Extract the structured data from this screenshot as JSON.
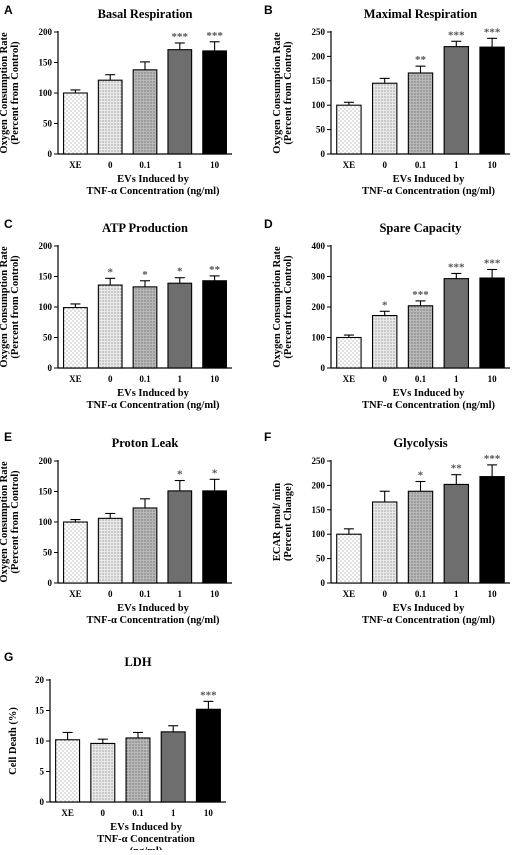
{
  "chart_data": [
    {
      "panel": "A",
      "type": "bar",
      "title": "Basal Respiration",
      "ylabel": [
        "Oxygen  Consumption Rate",
        "(Percent from Control)"
      ],
      "xlabel": [
        "EVs Induced by",
        "TNF-α Concentration (ng/ml)"
      ],
      "categories": [
        "XE",
        "0",
        "0.1",
        "1",
        "10"
      ],
      "values": [
        100,
        121,
        138,
        171,
        169
      ],
      "errors": [
        5,
        9,
        13,
        11,
        15
      ],
      "significance": [
        "",
        "",
        "",
        "***",
        "***"
      ],
      "ylim": [
        0,
        200
      ],
      "yticks": [
        0,
        50,
        100,
        150,
        200
      ]
    },
    {
      "panel": "B",
      "type": "bar",
      "title": "Maximal Respiration",
      "ylabel": [
        "Oxygen  Consumption Rate",
        "(Percent from Control)"
      ],
      "xlabel": [
        "EVs Induced by",
        "TNF-α Concentration (ng/ml)"
      ],
      "categories": [
        "XE",
        "0",
        "0.1",
        "1",
        "10"
      ],
      "values": [
        100,
        145,
        166,
        220,
        219
      ],
      "errors": [
        6,
        10,
        14,
        11,
        18
      ],
      "significance": [
        "",
        "",
        "**",
        "***",
        "***"
      ],
      "ylim": [
        0,
        250
      ],
      "yticks": [
        0,
        50,
        100,
        150,
        200,
        250
      ]
    },
    {
      "panel": "C",
      "type": "bar",
      "title": "ATP Production",
      "ylabel": [
        "Oxygen  Consumption Rate",
        "(Percent from Control)"
      ],
      "xlabel": [
        "EVs Induced by",
        "TNF-α Concentration (ng/ml)"
      ],
      "categories": [
        "XE",
        "0",
        "0.1",
        "1",
        "10"
      ],
      "values": [
        99,
        136,
        133,
        139,
        143
      ],
      "errors": [
        6,
        11,
        10,
        9,
        8
      ],
      "significance": [
        "",
        "*",
        "*",
        "*",
        "**"
      ],
      "ylim": [
        0,
        200
      ],
      "yticks": [
        0,
        50,
        100,
        150,
        200
      ]
    },
    {
      "panel": "D",
      "type": "bar",
      "title": "Spare Capacity",
      "ylabel": [
        "Oxygen  Consumption Rate",
        "(Percent from Control)"
      ],
      "xlabel": [
        "EVs Induced by",
        "TNF-α Concentration (ng/ml)"
      ],
      "categories": [
        "XE",
        "0",
        "0.1",
        "1",
        "10"
      ],
      "values": [
        100,
        172,
        204,
        293,
        295
      ],
      "errors": [
        8,
        14,
        16,
        17,
        28
      ],
      "significance": [
        "",
        "*",
        "***",
        "***",
        "***"
      ],
      "ylim": [
        0,
        400
      ],
      "yticks": [
        0,
        100,
        200,
        300,
        400
      ]
    },
    {
      "panel": "E",
      "type": "bar",
      "title": "Proton Leak",
      "ylabel": [
        "Oxygen  Consumption Rate",
        "(Percent from Control)"
      ],
      "xlabel": [
        "EVs Induced by",
        "TNF-α Concentration (ng/ml)"
      ],
      "categories": [
        "XE",
        "0",
        "0.1",
        "1",
        "10"
      ],
      "values": [
        100,
        106,
        123,
        151,
        151
      ],
      "errors": [
        4,
        8,
        15,
        17,
        19
      ],
      "significance": [
        "",
        "",
        "",
        "*",
        "*"
      ],
      "ylim": [
        0,
        200
      ],
      "yticks": [
        0,
        50,
        100,
        150,
        200
      ]
    },
    {
      "panel": "F",
      "type": "bar",
      "title": "Glycolysis",
      "ylabel": [
        "ECAR pmol/ min",
        "(Percent Change)"
      ],
      "xlabel": [
        "EVs Induced by",
        "TNF-α Concentration (ng/ml)"
      ],
      "categories": [
        "XE",
        "0",
        "0.1",
        "1",
        "10"
      ],
      "values": [
        100,
        166,
        188,
        202,
        218
      ],
      "errors": [
        11,
        22,
        20,
        20,
        24
      ],
      "significance": [
        "",
        "",
        "*",
        "**",
        "***"
      ],
      "ylim": [
        0,
        250
      ],
      "yticks": [
        0,
        50,
        100,
        150,
        200,
        250
      ]
    },
    {
      "panel": "G",
      "type": "bar",
      "title": "LDH",
      "ylabel": [
        "Cell  Death (%)"
      ],
      "xlabel": [
        "EVs Induced by",
        "TNF-α Concentration",
        "(ng/ml)"
      ],
      "categories": [
        "XE",
        "0",
        "0.1",
        "1",
        "10"
      ],
      "values": [
        10.2,
        9.6,
        10.5,
        11.5,
        15.2
      ],
      "errors": [
        1.2,
        0.7,
        0.9,
        1.0,
        1.3
      ],
      "significance": [
        "",
        "",
        "",
        "",
        "***"
      ],
      "ylim": [
        0,
        20
      ],
      "yticks": [
        0,
        5,
        10,
        15,
        20
      ]
    }
  ],
  "colors": {
    "bar_fills": [
      "#ffffff",
      "#e4e4e4",
      "#b2b2b2",
      "#6e6e6e",
      "#000000"
    ],
    "dot_pattern": "#555555",
    "axis": "#000000",
    "significance": "#555555"
  }
}
